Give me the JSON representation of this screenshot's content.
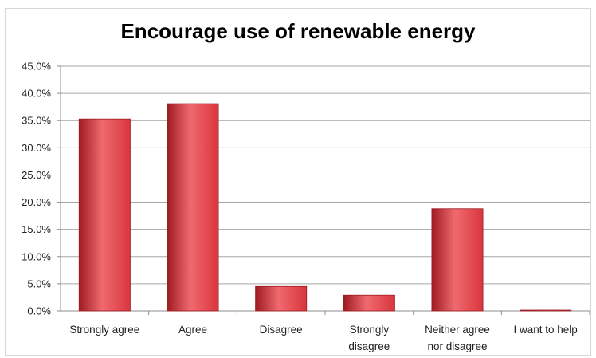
{
  "chart_data": {
    "type": "bar",
    "title": "Encourage use of renewable energy",
    "xlabel": "",
    "ylabel": "",
    "categories": [
      "Strongly agree",
      "Agree",
      "Disagree",
      "Strongly disagree",
      "Neither agree nor disagree",
      "I want to help"
    ],
    "category_lines": [
      [
        "Strongly agree"
      ],
      [
        "Agree"
      ],
      [
        "Disagree"
      ],
      [
        "Strongly",
        "disagree"
      ],
      [
        "Neither agree",
        "nor disagree"
      ],
      [
        "I want to help"
      ]
    ],
    "values": [
      35.3,
      38.1,
      4.5,
      2.9,
      18.8,
      0.1
    ],
    "ylim": [
      0,
      45
    ],
    "yticks": [
      "0.0%",
      "5.0%",
      "10.0%",
      "15.0%",
      "20.0%",
      "25.0%",
      "30.0%",
      "35.0%",
      "40.0%",
      "45.0%"
    ],
    "grid": true,
    "legend": "none",
    "colors": {
      "bar": "#d9363e",
      "bar_light": "#ef6a6e",
      "bar_dark": "#9e1b22",
      "grid": "#a6a6a6",
      "axis": "#8c8c8c"
    }
  }
}
